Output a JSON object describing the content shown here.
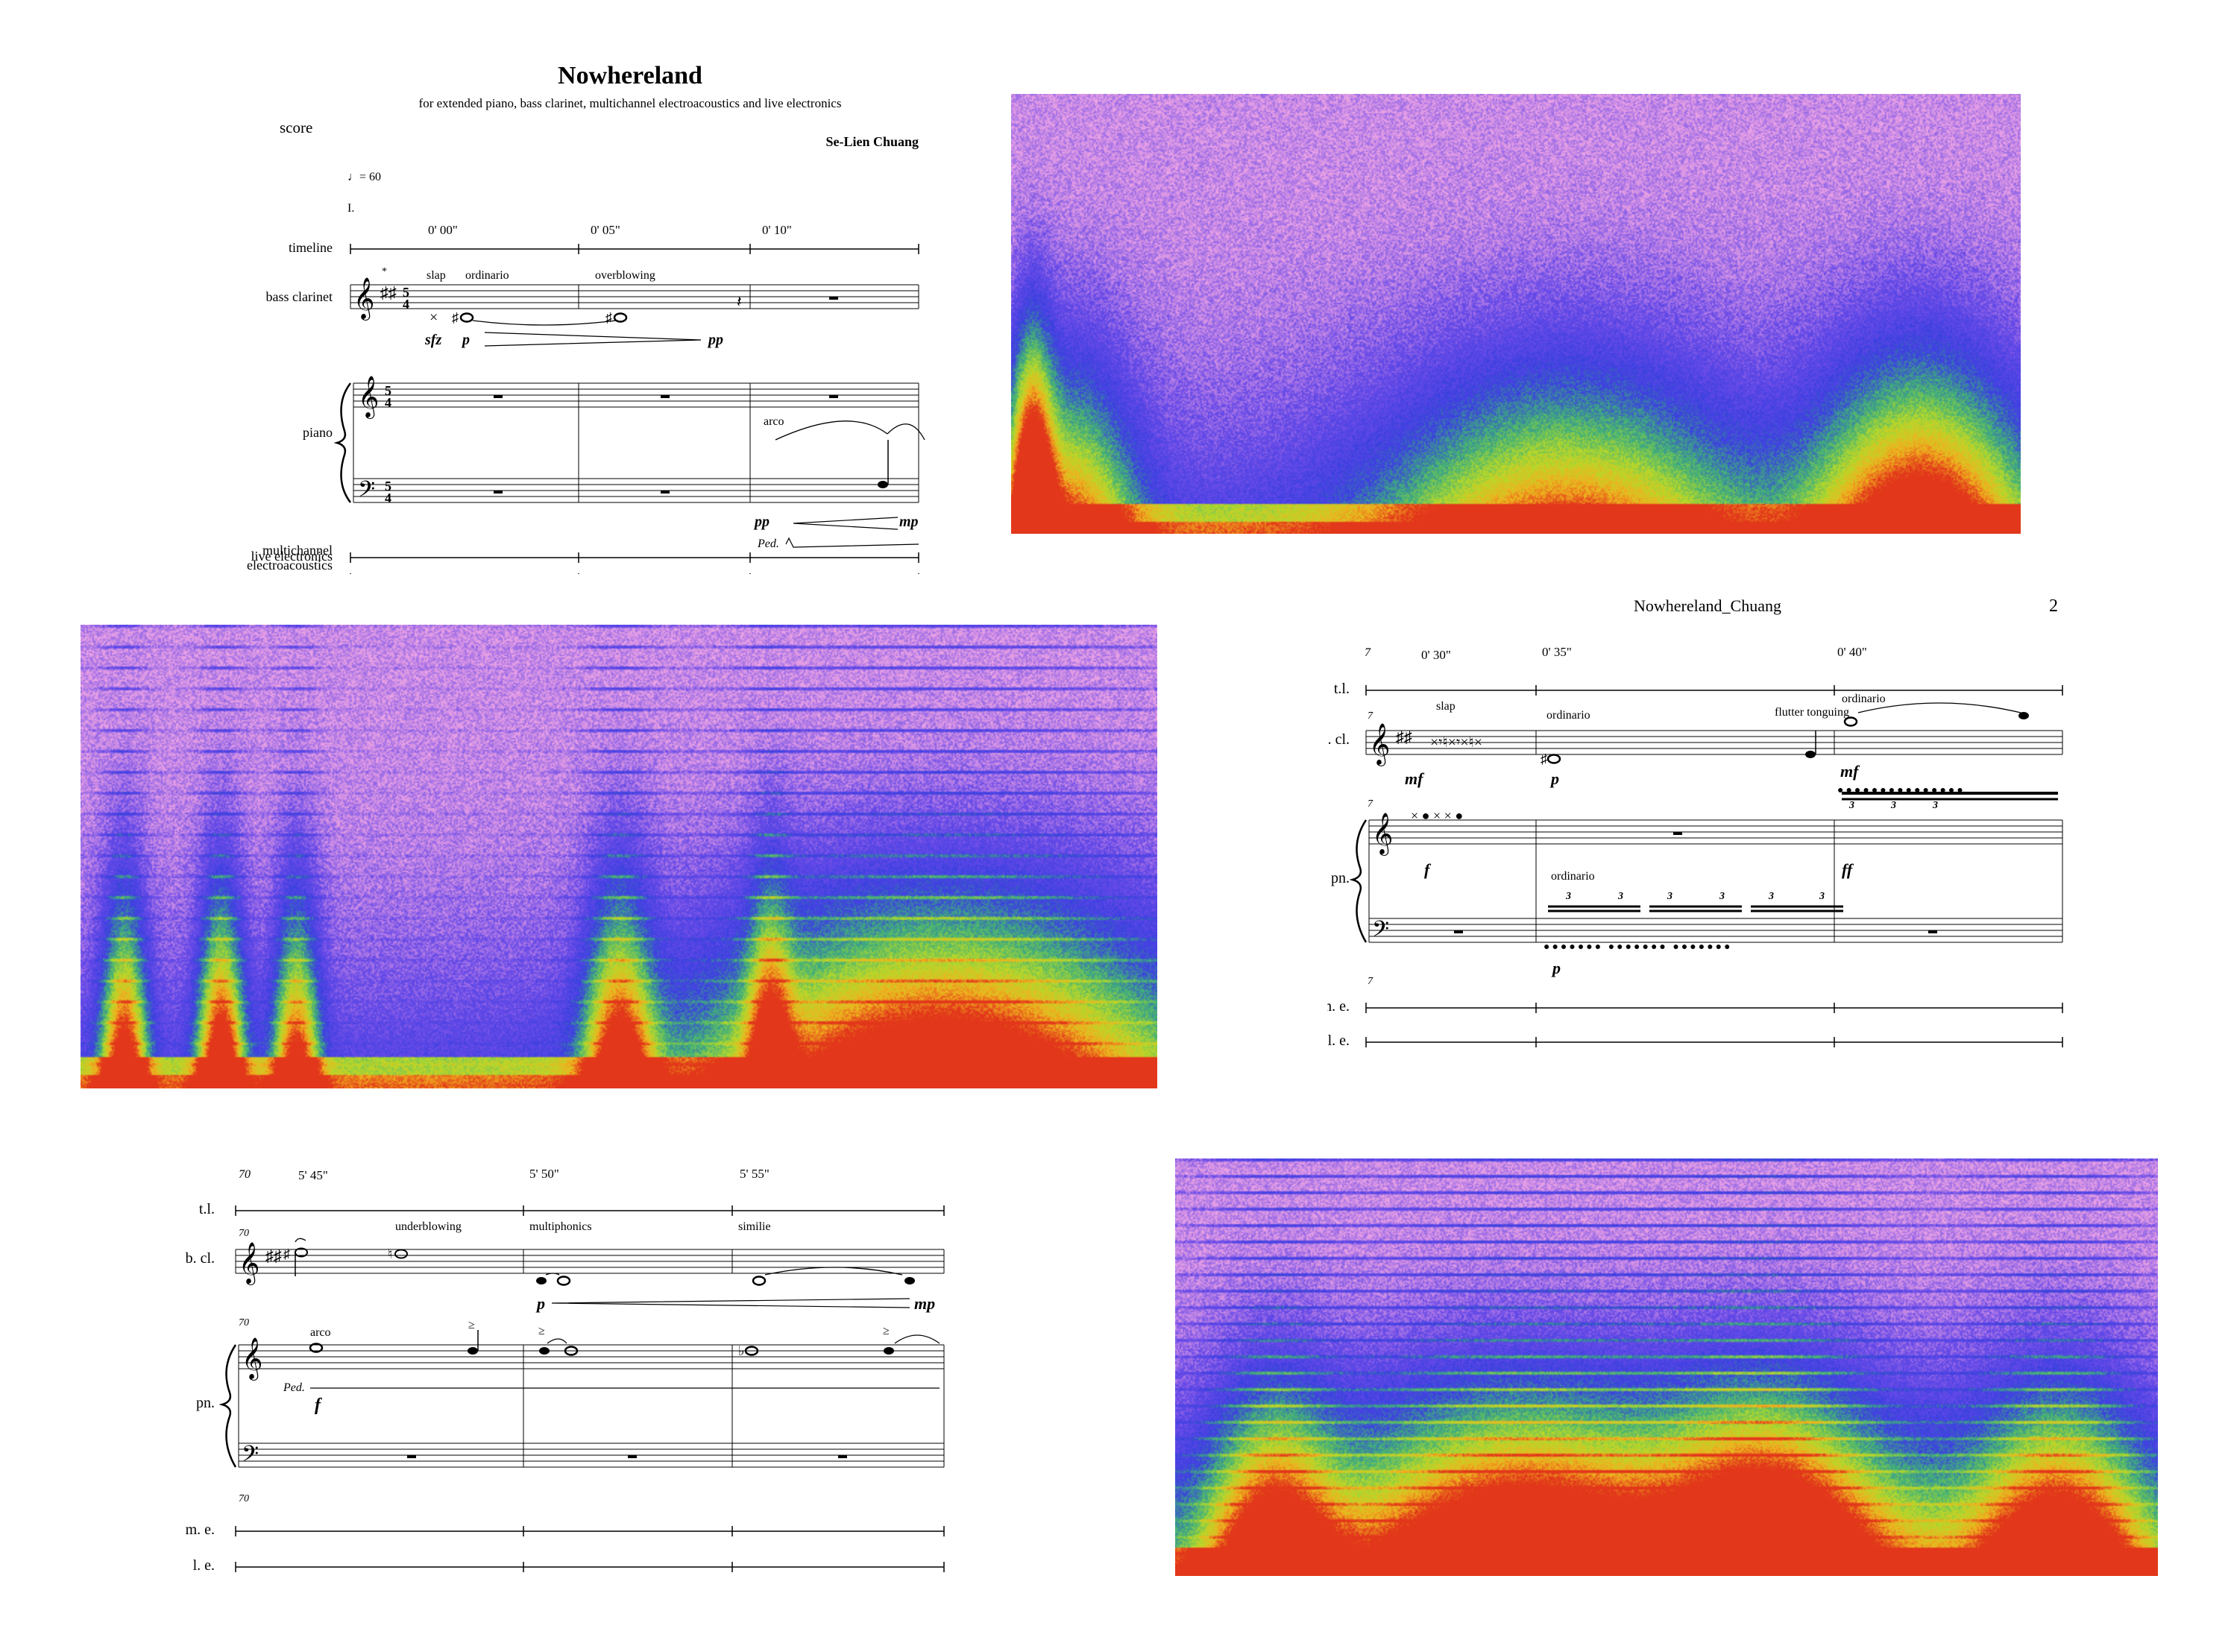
{
  "score1": {
    "title": "Nowhereland",
    "subtitle": "for extended piano, bass clarinet, multichannel electroacoustics and live electronics",
    "score_label": "score",
    "composer": "Se-Lien Chuang",
    "tempo": "♩= 60",
    "section": "I.",
    "times": [
      "0' 00\"",
      "0' 05\"",
      "0' 10\""
    ],
    "staff_labels": {
      "timeline": "timeline",
      "bass_clarinet": "bass clarinet",
      "piano": "piano",
      "me_line1": "multichannel",
      "me_line2": "electroacoustics",
      "live": "live electronics"
    },
    "techniques": {
      "slap": "slap",
      "ordinario": "ordinario",
      "overblowing": "overblowing",
      "arco": "arco"
    },
    "dynamics": {
      "sfz": "sfz",
      "p": "p",
      "pp": "pp",
      "pp2": "pp",
      "mp": "mp"
    },
    "time_sig_top": "5",
    "time_sig_bottom": "4",
    "ped": "Ped.",
    "asterisk": "*"
  },
  "score2": {
    "header": "Nowhereland_Chuang",
    "page_number": "2",
    "measure_number": "7",
    "times": [
      "0' 30\"",
      "0' 35\"",
      "0' 40\""
    ],
    "staff_labels": {
      "tl": "t.l.",
      "bcl": "b. cl.",
      "pn": "pn.",
      "me": "m. e.",
      "le": "l. e."
    },
    "techniques": {
      "slap": "slap",
      "ordinario": "ordinario",
      "flutter": "flutter tonguing",
      "ordinario2": "ordinario",
      "ordinario_pn": "ordinario"
    },
    "dynamics": {
      "mf": "mf",
      "p": "p",
      "mf2": "mf",
      "f": "f",
      "ff": "ff",
      "p2": "p"
    },
    "tuplet": "3"
  },
  "score3": {
    "measure_number": "70",
    "times": [
      "5' 45\"",
      "5' 50\"",
      "5' 55\""
    ],
    "staff_labels": {
      "tl": "t.l.",
      "bcl": "b. cl.",
      "pn": "pn.",
      "me": "m. e.",
      "le": "l. e."
    },
    "techniques": {
      "underblowing": "underblowing",
      "multiphonics": "multiphonics",
      "similie": "similie",
      "arco": "arco"
    },
    "dynamics": {
      "p": "p",
      "mp": "mp",
      "f": "f"
    },
    "ped": "Ped."
  },
  "spectrograms": {
    "colors": [
      "#f4c2ec",
      "#e9a0e4",
      "#6a4be8",
      "#3a3fe0",
      "#3fb07a",
      "#b5d92a",
      "#f0b21e",
      "#e2361a"
    ]
  }
}
